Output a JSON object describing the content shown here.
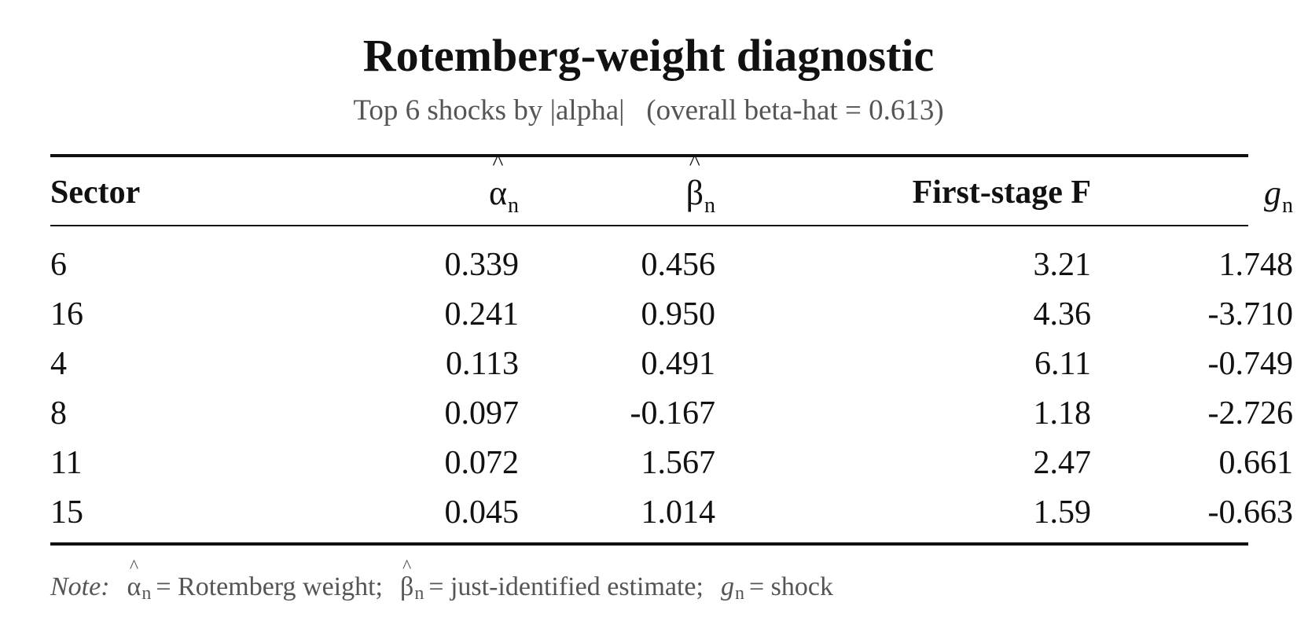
{
  "title": "Rotemberg-weight diagnostic",
  "subtitle": "Top 6 shocks by |alpha|   (overall beta-hat = 0.613)",
  "table": {
    "headers": {
      "sector": "Sector",
      "alpha_symbol": "α",
      "alpha_hat": "^",
      "alpha_sub": "n",
      "beta_symbol": "β",
      "beta_hat": "^",
      "beta_sub": "n",
      "first_stage_f": "First-stage F",
      "g_symbol": "g",
      "g_sub": "n"
    },
    "rows": [
      {
        "sector": "6",
        "alpha": "0.339",
        "beta": "0.456",
        "f": "3.21",
        "g": "1.748"
      },
      {
        "sector": "16",
        "alpha": "0.241",
        "beta": "0.950",
        "f": "4.36",
        "g": "-3.710"
      },
      {
        "sector": "4",
        "alpha": "0.113",
        "beta": "0.491",
        "f": "6.11",
        "g": "-0.749"
      },
      {
        "sector": "8",
        "alpha": "0.097",
        "beta": "-0.167",
        "f": "1.18",
        "g": "-2.726"
      },
      {
        "sector": "11",
        "alpha": "0.072",
        "beta": "1.567",
        "f": "2.47",
        "g": "0.661"
      },
      {
        "sector": "15",
        "alpha": "0.045",
        "beta": "1.014",
        "f": "1.59",
        "g": "-0.663"
      }
    ]
  },
  "note": {
    "label": "Note:",
    "alpha_def": "= Rotemberg weight;",
    "beta_def": "= just-identified estimate;",
    "g_def": "= shock"
  },
  "colors": {
    "text": "#111111",
    "muted": "#555555",
    "rule": "#111111",
    "background": "#ffffff"
  }
}
